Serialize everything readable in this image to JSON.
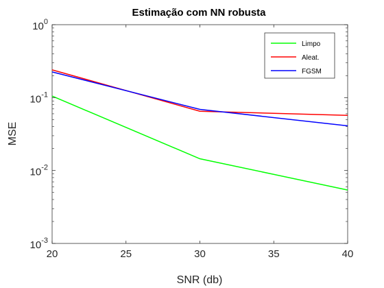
{
  "chart_data": {
    "type": "line",
    "title": "Estimação com NN robusta",
    "xlabel": "SNR (db)",
    "ylabel": "MSE",
    "x": [
      20,
      30,
      40
    ],
    "xlim": [
      20,
      40
    ],
    "ylim": [
      0.001,
      1
    ],
    "yscale": "log",
    "xticks": [
      20,
      25,
      30,
      35,
      40
    ],
    "yticks": [
      {
        "value": 0.001,
        "base": "10",
        "exp": "-3"
      },
      {
        "value": 0.01,
        "base": "10",
        "exp": "-2"
      },
      {
        "value": 0.1,
        "base": "10",
        "exp": "-1"
      },
      {
        "value": 1,
        "base": "10",
        "exp": "0"
      }
    ],
    "grid": false,
    "legend_position": "top-right",
    "series": [
      {
        "name": "Limpo",
        "color": "#00ff00",
        "values": [
          0.105,
          0.0145,
          0.0054
        ]
      },
      {
        "name": "Aleat.",
        "color": "#ff0000",
        "values": [
          0.24,
          0.065,
          0.057
        ]
      },
      {
        "name": "FGSM",
        "color": "#0000ff",
        "values": [
          0.225,
          0.069,
          0.041
        ]
      }
    ]
  }
}
